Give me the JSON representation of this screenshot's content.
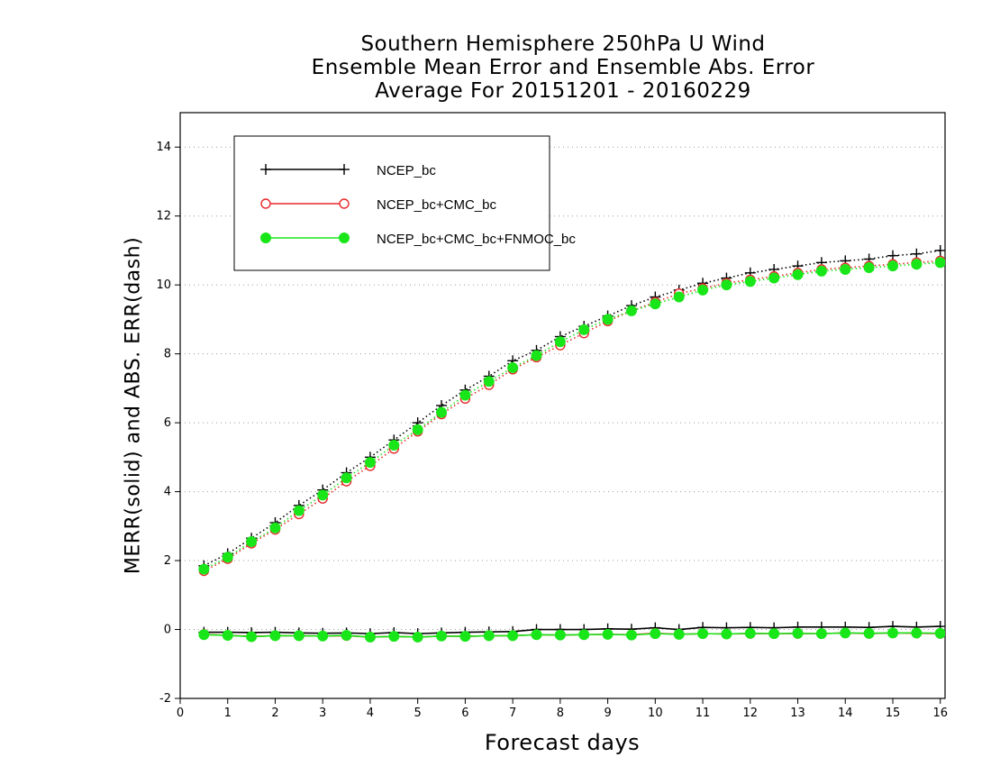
{
  "chart_data": {
    "type": "line",
    "title": [
      "Southern Hemisphere 250hPa U Wind",
      "Ensemble Mean Error and Ensemble Abs. Error",
      "Average For 20151201 - 20160229"
    ],
    "xlabel": "Forecast days",
    "ylabel": "MERR(solid) and ABS. ERR(dash)",
    "xlim": [
      0,
      16.1
    ],
    "ylim": [
      -2,
      15
    ],
    "xticks": [
      "0",
      "1",
      "2",
      "3",
      "4",
      "5",
      "6",
      "7",
      "8",
      "9",
      "10",
      "11",
      "12",
      "13",
      "14",
      "15",
      "16"
    ],
    "yticks": [
      "-2",
      "0",
      "2",
      "4",
      "6",
      "8",
      "10",
      "12",
      "14"
    ],
    "grid": true,
    "legend_position": "top-left",
    "x": [
      0.5,
      1,
      1.5,
      2,
      2.5,
      3,
      3.5,
      4,
      4.5,
      5,
      5.5,
      6,
      6.5,
      7,
      7.5,
      8,
      8.5,
      9,
      9.5,
      10,
      10.5,
      11,
      11.5,
      12,
      12.5,
      13,
      13.5,
      14,
      14.5,
      15,
      15.5,
      16
    ],
    "series": [
      {
        "name": "NCEP_bc",
        "color": "#000000",
        "marker": "plus",
        "abs_err": [
          1.85,
          2.2,
          2.65,
          3.1,
          3.6,
          4.05,
          4.55,
          5.0,
          5.5,
          6.0,
          6.5,
          6.95,
          7.35,
          7.8,
          8.1,
          8.5,
          8.8,
          9.1,
          9.4,
          9.65,
          9.85,
          10.05,
          10.2,
          10.35,
          10.45,
          10.55,
          10.65,
          10.7,
          10.75,
          10.85,
          10.9,
          11.0
        ],
        "mean_err": [
          -0.08,
          -0.08,
          -0.09,
          -0.08,
          -0.1,
          -0.11,
          -0.1,
          -0.12,
          -0.09,
          -0.12,
          -0.1,
          -0.08,
          -0.07,
          -0.06,
          0.0,
          0.0,
          0.0,
          0.02,
          0.01,
          0.05,
          0.0,
          0.06,
          0.05,
          0.06,
          0.05,
          0.07,
          0.07,
          0.07,
          0.06,
          0.09,
          0.07,
          0.09
        ]
      },
      {
        "name": "NCEP_bc+CMC_bc",
        "color": "#e8292b",
        "marker": "open-circle",
        "abs_err": [
          1.7,
          2.05,
          2.5,
          2.9,
          3.35,
          3.8,
          4.3,
          4.75,
          5.25,
          5.75,
          6.25,
          6.7,
          7.1,
          7.55,
          7.9,
          8.25,
          8.6,
          8.95,
          9.25,
          9.5,
          9.75,
          9.9,
          10.05,
          10.15,
          10.25,
          10.35,
          10.45,
          10.5,
          10.55,
          10.6,
          10.65,
          10.7
        ],
        "mean_err": [
          -0.14,
          -0.17,
          -0.2,
          -0.18,
          -0.18,
          -0.19,
          -0.18,
          -0.22,
          -0.2,
          -0.22,
          -0.19,
          -0.2,
          -0.18,
          -0.18,
          -0.15,
          -0.16,
          -0.15,
          -0.14,
          -0.15,
          -0.11,
          -0.14,
          -0.12,
          -0.13,
          -0.12,
          -0.12,
          -0.12,
          -0.12,
          -0.1,
          -0.12,
          -0.1,
          -0.11,
          -0.12
        ]
      },
      {
        "name": "NCEP_bc+CMC_bc+FNMOC_bc",
        "color": "#19e619",
        "marker": "filled-circle",
        "abs_err": [
          1.75,
          2.1,
          2.55,
          2.95,
          3.45,
          3.9,
          4.4,
          4.85,
          5.35,
          5.8,
          6.3,
          6.8,
          7.2,
          7.6,
          7.95,
          8.35,
          8.7,
          9.0,
          9.25,
          9.45,
          9.65,
          9.85,
          10.0,
          10.1,
          10.2,
          10.3,
          10.4,
          10.45,
          10.5,
          10.55,
          10.6,
          10.65
        ],
        "mean_err": [
          -0.15,
          -0.17,
          -0.21,
          -0.18,
          -0.18,
          -0.19,
          -0.17,
          -0.22,
          -0.2,
          -0.22,
          -0.19,
          -0.2,
          -0.18,
          -0.18,
          -0.15,
          -0.16,
          -0.15,
          -0.14,
          -0.16,
          -0.12,
          -0.14,
          -0.12,
          -0.13,
          -0.11,
          -0.12,
          -0.11,
          -0.12,
          -0.1,
          -0.11,
          -0.1,
          -0.1,
          -0.11
        ]
      }
    ]
  }
}
